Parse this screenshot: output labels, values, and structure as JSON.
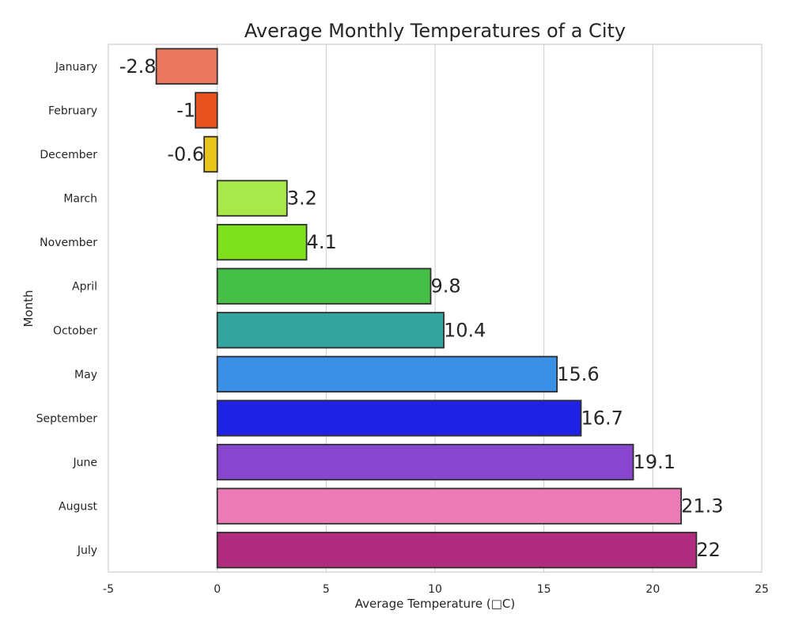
{
  "chart_data": {
    "type": "bar",
    "orientation": "horizontal",
    "title": "Average Monthly Temperatures of a City",
    "xlabel": "Average Temperature (□C)",
    "ylabel": "Month",
    "xlim": [
      -5,
      25
    ],
    "xticks": [
      -5,
      0,
      5,
      10,
      15,
      20,
      25
    ],
    "grid": true,
    "legend": "none",
    "categories": [
      "January",
      "February",
      "December",
      "March",
      "November",
      "April",
      "October",
      "May",
      "September",
      "June",
      "August",
      "July"
    ],
    "values": [
      -2.8,
      -1,
      -0.6,
      3.2,
      4.1,
      9.8,
      10.4,
      15.6,
      16.7,
      19.1,
      21.3,
      22
    ],
    "data_labels": [
      "-2.8",
      "-1",
      "-0.6",
      "3.2",
      "4.1",
      "9.8",
      "10.4",
      "15.6",
      "16.7",
      "19.1",
      "21.3",
      "22"
    ],
    "colors": [
      "#ec7760",
      "#e7511e",
      "#e8c51b",
      "#a8e84a",
      "#7fe11e",
      "#46bf46",
      "#33a59e",
      "#3a8fe7",
      "#1f22e4",
      "#8846cf",
      "#ec7bb5",
      "#b12b7f"
    ]
  }
}
